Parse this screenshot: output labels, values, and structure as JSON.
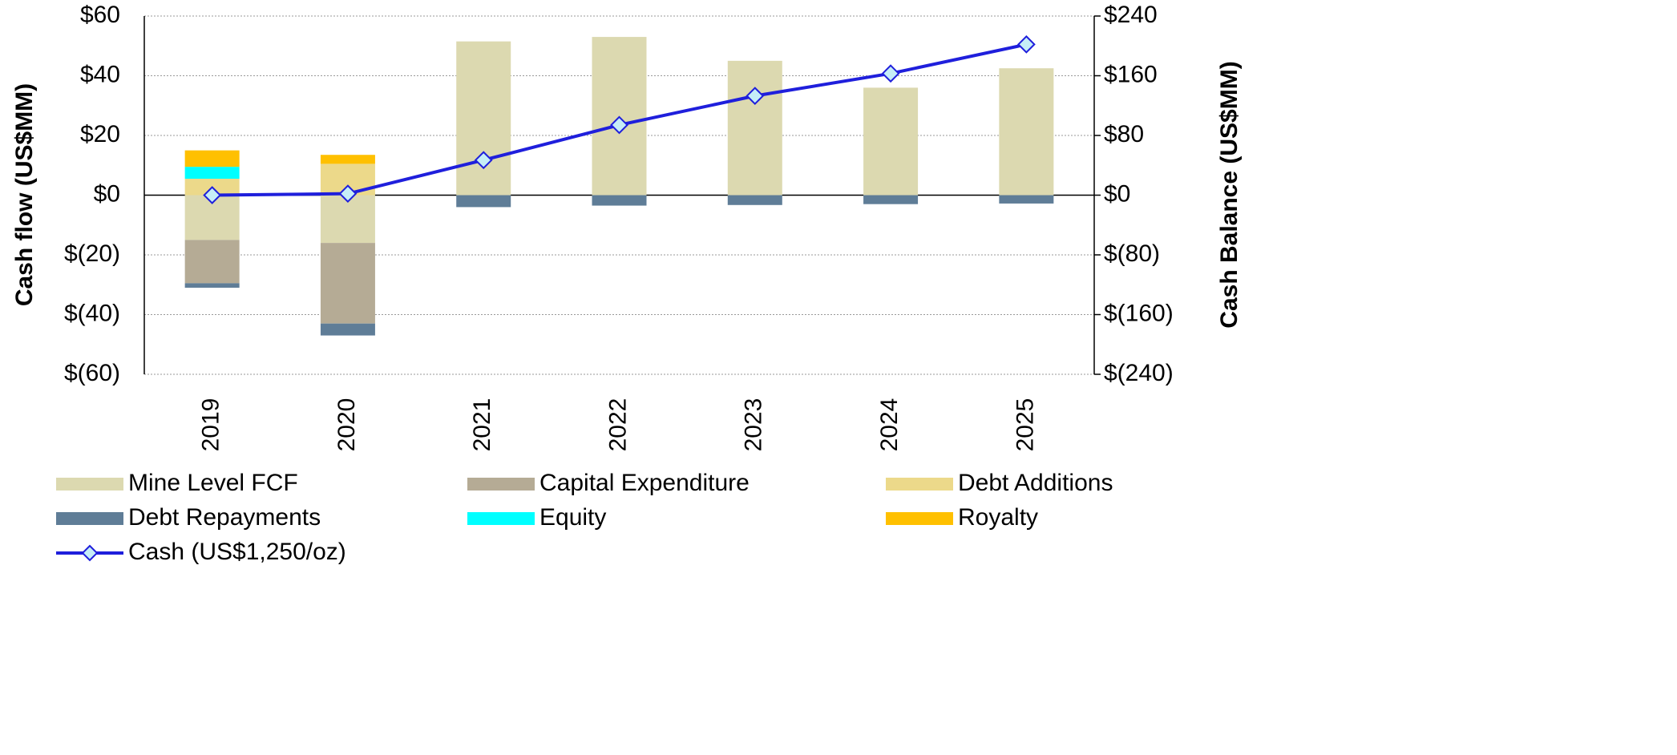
{
  "chart_data": {
    "type": "bar",
    "stacked": true,
    "categories": [
      "2019",
      "2020",
      "2021",
      "2022",
      "2023",
      "2024",
      "2025"
    ],
    "ylabel": "Cash flow (US$MM)",
    "y2label": "Cash Balance (US$MM)",
    "ylim": [
      -60,
      60
    ],
    "yticks": [
      {
        "value": -60,
        "label": "$(60)"
      },
      {
        "value": -40,
        "label": "$(40)"
      },
      {
        "value": -20,
        "label": "$(20)"
      },
      {
        "value": 0,
        "label": "$0"
      },
      {
        "value": 20,
        "label": "$20"
      },
      {
        "value": 40,
        "label": "$40"
      },
      {
        "value": 60,
        "label": "$60"
      }
    ],
    "y2lim": [
      -240,
      240
    ],
    "y2ticks": [
      {
        "value": -240,
        "label": "$(240)"
      },
      {
        "value": -160,
        "label": "$(160)"
      },
      {
        "value": -80,
        "label": "$(80)"
      },
      {
        "value": 0,
        "label": "$0"
      },
      {
        "value": 80,
        "label": "$80"
      },
      {
        "value": 160,
        "label": "$160"
      },
      {
        "value": 240,
        "label": "$240"
      }
    ],
    "grid": true,
    "series": [
      {
        "name": "Mine Level FCF",
        "color": "#dcd9b0",
        "values": [
          -15,
          -16,
          51.5,
          53,
          45,
          36,
          42.5
        ]
      },
      {
        "name": "Capital Expenditure",
        "color": "#b5ab95",
        "values": [
          -14.5,
          -27,
          0,
          0,
          0,
          0,
          0
        ]
      },
      {
        "name": "Debt Additions",
        "color": "#ecd98a",
        "values": [
          5.5,
          10.5,
          0,
          0,
          0,
          0,
          0
        ]
      },
      {
        "name": "Debt Repayments",
        "color": "#5f7d97",
        "values": [
          -1.5,
          -4,
          -4,
          -3.5,
          -3.3,
          -3,
          -2.8
        ]
      },
      {
        "name": "Equity",
        "color": "#00ffff",
        "values": [
          4,
          0,
          0,
          0,
          0,
          0,
          0
        ]
      },
      {
        "name": "Royalty",
        "color": "#ffc000",
        "values": [
          5.5,
          3,
          0,
          0,
          0,
          0,
          0
        ]
      },
      {
        "name": "Cash (US$1,250/oz)",
        "color": "#1f1fdc",
        "type": "line",
        "axis": "y2",
        "values": [
          0,
          2,
          47,
          94,
          133,
          163,
          202
        ]
      }
    ]
  }
}
